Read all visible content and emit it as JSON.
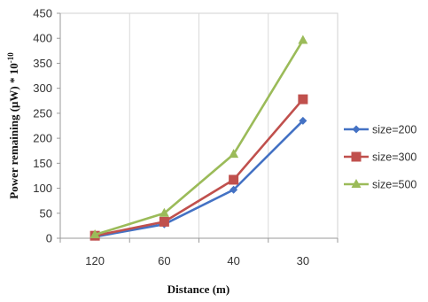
{
  "chart_data": {
    "type": "line",
    "xlabel": "Distance (m)",
    "ylabel": "Power remaining (μW) * 10",
    "ylabel_exponent": "-10",
    "categories": [
      "120",
      "60",
      "40",
      "30"
    ],
    "ylim": [
      0,
      450
    ],
    "ytick_step": 50,
    "yticks": [
      "0",
      "50",
      "100",
      "150",
      "200",
      "250",
      "300",
      "350",
      "400",
      "450"
    ],
    "grid": "vertical",
    "legend_position": "right",
    "series": [
      {
        "name": "size=200",
        "color": "#4472C4",
        "marker": "diamond",
        "values": [
          3,
          28,
          97,
          235
        ]
      },
      {
        "name": "size=300",
        "color": "#C0504D",
        "marker": "square",
        "values": [
          5,
          33,
          117,
          278
        ]
      },
      {
        "name": "size=500",
        "color": "#9BBB59",
        "marker": "triangle",
        "values": [
          7,
          50,
          168,
          396
        ]
      }
    ]
  }
}
